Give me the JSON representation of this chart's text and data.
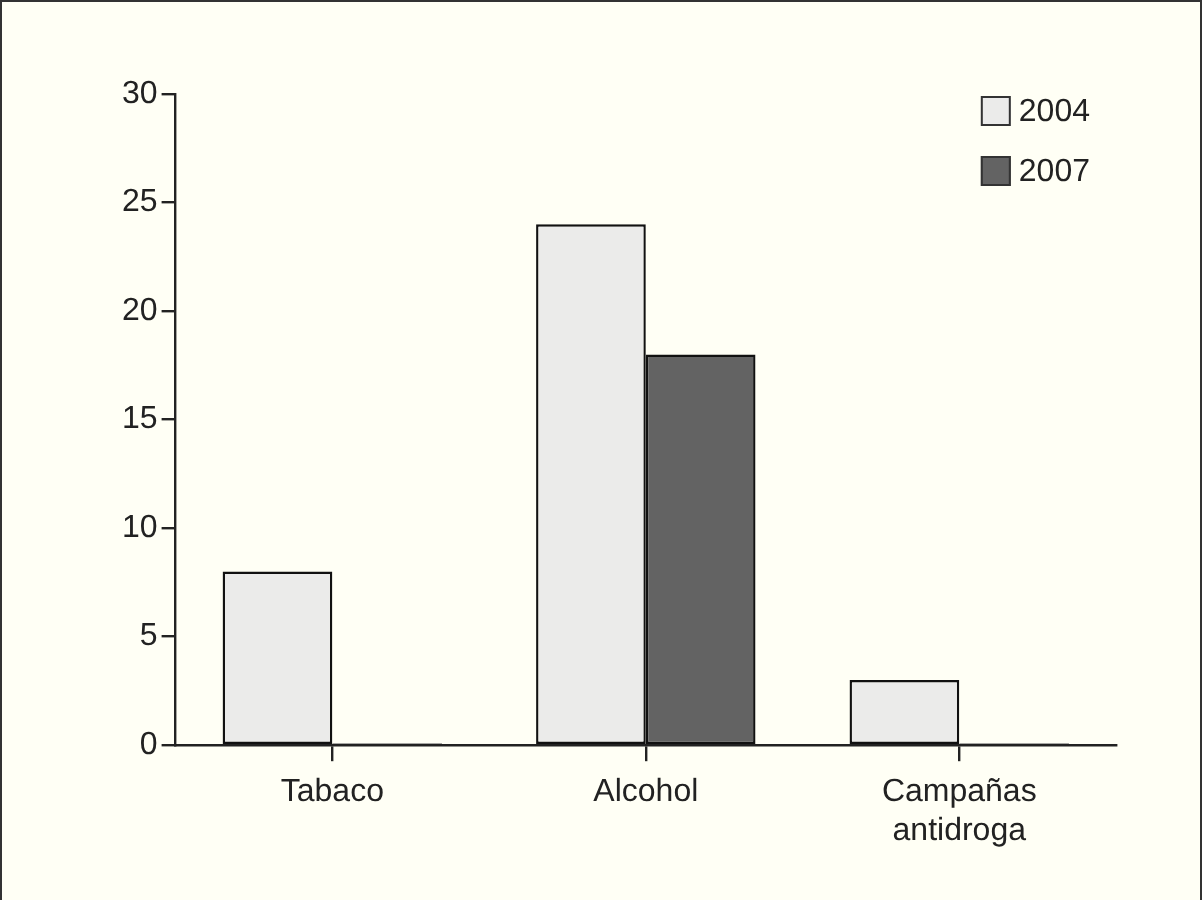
{
  "chart_data": {
    "type": "bar",
    "categories": [
      "Tabaco",
      "Alcohol",
      "Campañas\nantidroga"
    ],
    "series": [
      {
        "name": "2004",
        "color": "#ebebea",
        "values": [
          8,
          24,
          3
        ]
      },
      {
        "name": "2007",
        "color": "#636363",
        "values": [
          0,
          18,
          0
        ]
      }
    ],
    "ylim": [
      0,
      30
    ],
    "yticks": [
      0,
      5,
      10,
      15,
      20,
      25,
      30
    ],
    "grid": false,
    "legend": "top right"
  }
}
